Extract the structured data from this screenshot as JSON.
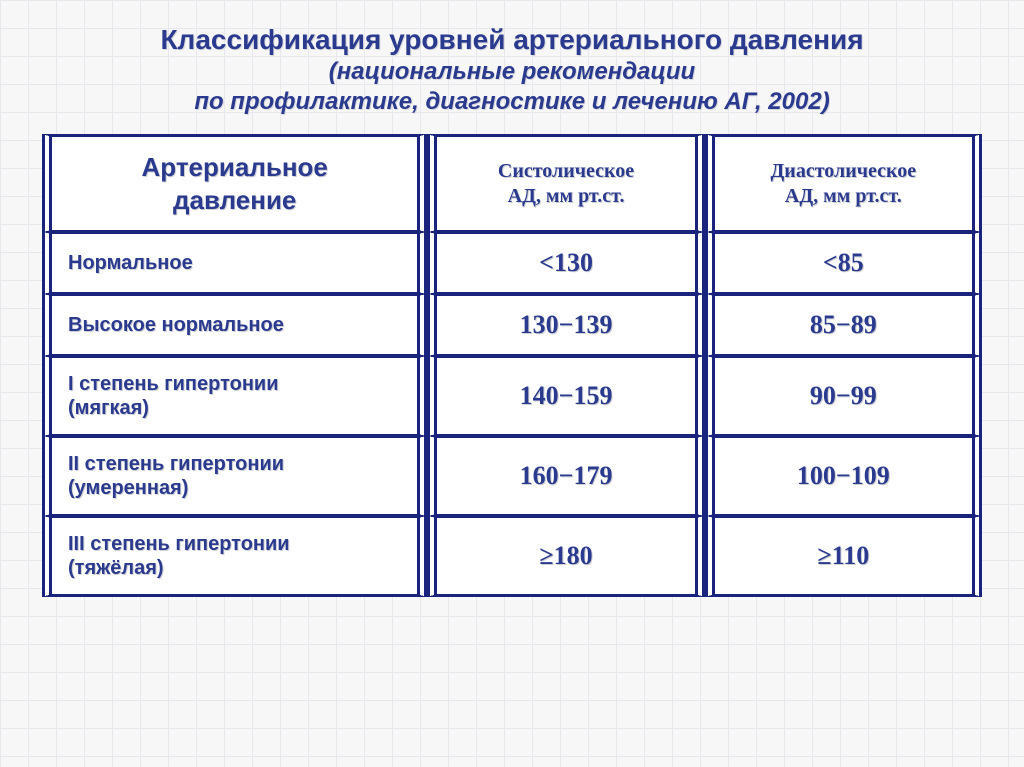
{
  "title": {
    "line1": "Классификация уровней артериального давления",
    "line2": "(национальные рекомендации",
    "line3": "по профилактике, диагностике и лечению АГ, 2002)"
  },
  "table": {
    "columns": {
      "category_line1": "Артериальное",
      "category_line2": "давление",
      "systolic_line1": "Систолическое",
      "systolic_line2": "АД, мм рт.ст.",
      "diastolic_line1": "Диастолическое",
      "diastolic_line2": "АД, мм рт.ст."
    },
    "rows": [
      {
        "label_line1": "Нормальное",
        "label_line2": "",
        "sys": "<130",
        "dia": "<85"
      },
      {
        "label_line1": "Высокое нормальное",
        "label_line2": "",
        "sys": "130−139",
        "dia": "85−89"
      },
      {
        "label_line1": "I степень гипертонии",
        "label_line2": "(мягкая)",
        "sys": "140−159",
        "dia": "90−99"
      },
      {
        "label_line1": "II степень гипертонии",
        "label_line2": "(умеренная)",
        "sys": "160−179",
        "dia": "100−109"
      },
      {
        "label_line1": "III степень гипертонии",
        "label_line2": "(тяжёлая)",
        "sys": "≥180",
        "dia": "≥110"
      }
    ]
  },
  "style": {
    "accent_color": "#2a3a8f",
    "border_color": "#1a237e",
    "cell_bg": "#ffffff",
    "page_bg": "#f7f7f8",
    "grid_color": "#e8e8ec",
    "title_fontsize": 28,
    "subtitle_fontsize": 24,
    "header_fontsize_cat": 26,
    "header_fontsize_val": 20,
    "row_label_fontsize": 20,
    "row_val_fontsize": 26,
    "column_widths_pct": [
      41,
      29.5,
      29.5
    ]
  }
}
